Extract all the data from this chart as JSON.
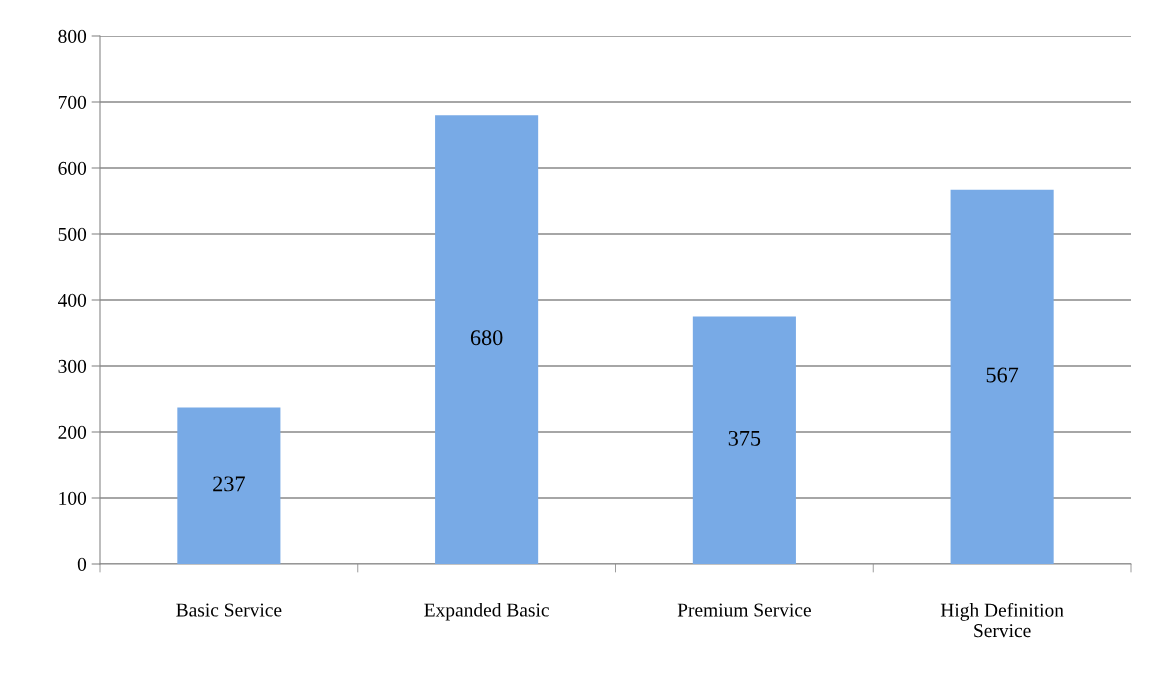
{
  "chart_data": {
    "type": "bar",
    "categories": [
      "Basic Service",
      "Expanded Basic",
      "Premium Service",
      "High Definition\nService"
    ],
    "values": [
      237,
      680,
      375,
      567
    ],
    "color": "#78aae6",
    "value_labels": [
      "237",
      "680",
      "375",
      "567"
    ],
    "ylim": [
      0,
      800
    ],
    "yticks": [
      0,
      100,
      200,
      300,
      400,
      500,
      600,
      700,
      800
    ],
    "grid": "y",
    "legend": false
  }
}
